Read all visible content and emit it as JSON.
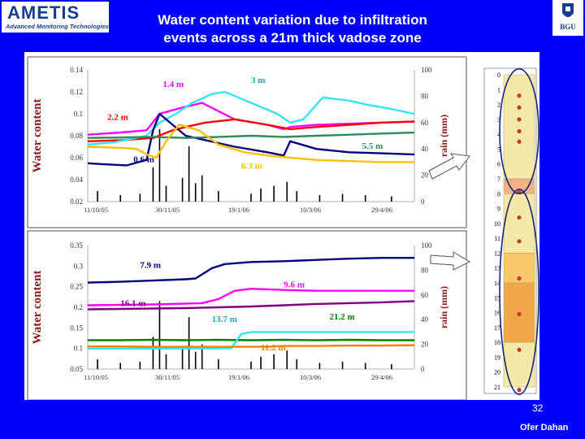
{
  "header": {
    "logo_name": "AMETIS",
    "logo_sub": "Advanced Monitoring Technologies",
    "title_line1": "Water content variation due to infiltration",
    "title_line2": "events across a 21m thick vadose zone",
    "right_logo": "BGU"
  },
  "footer": {
    "page_number": "32",
    "author": "Ofer Dahan"
  },
  "colors": {
    "background": "#0000ff",
    "navy": "#000080",
    "pink": "#ff00ff",
    "red": "#ff0000",
    "teal": "#2e8b57",
    "cyan": "#33e5f0",
    "gold": "#ffc000",
    "purple": "#800080",
    "orange": "#ff7f00",
    "green": "#008000"
  },
  "column": {
    "depths": [
      "0",
      "1",
      "2",
      "3",
      "4",
      "5",
      "6",
      "7",
      "8",
      "9",
      "10",
      "11",
      "12",
      "13",
      "14",
      "15",
      "16",
      "17",
      "18",
      "19",
      "20",
      "21"
    ]
  },
  "chart_data": [
    {
      "type": "line",
      "ylabel": "Water content",
      "y2label": "rain (mm)",
      "ylim": [
        0.02,
        0.14
      ],
      "y2lim": [
        0,
        100
      ],
      "yticks": [
        "0.14",
        "0.12",
        "0.1",
        "0.08",
        "0.06",
        "0.04",
        "0.02"
      ],
      "y2ticks": [
        "100",
        "80",
        "60",
        "40",
        "20",
        "0"
      ],
      "xticks": [
        "11/10/05",
        "30/11/05",
        "19/1/06",
        "10/3/06",
        "29/4/06"
      ],
      "series": [
        {
          "name": "1.4 m",
          "color": "#ff00ff",
          "x": [
            0,
            0.1,
            0.18,
            0.22,
            0.28,
            0.35,
            0.45,
            0.55,
            0.6,
            0.62,
            0.7,
            0.8,
            0.9,
            1
          ],
          "y": [
            0.081,
            0.083,
            0.085,
            0.1,
            0.105,
            0.11,
            0.095,
            0.09,
            0.086,
            0.088,
            0.09,
            0.091,
            0.092,
            0.093
          ]
        },
        {
          "name": "2.2 m",
          "color": "#ff0000",
          "x": [
            0,
            0.1,
            0.2,
            0.26,
            0.3,
            0.36,
            0.45,
            0.55,
            0.62,
            0.7,
            0.8,
            0.9,
            1
          ],
          "y": [
            0.075,
            0.076,
            0.078,
            0.085,
            0.088,
            0.092,
            0.095,
            0.09,
            0.086,
            0.088,
            0.09,
            0.092,
            0.093
          ]
        },
        {
          "name": "3 m",
          "color": "#33e5f0",
          "x": [
            0,
            0.08,
            0.18,
            0.22,
            0.27,
            0.32,
            0.38,
            0.42,
            0.5,
            0.58,
            0.62,
            0.66,
            0.72,
            0.8,
            0.86,
            0.92,
            1
          ],
          "y": [
            0.072,
            0.074,
            0.08,
            0.092,
            0.1,
            0.11,
            0.118,
            0.12,
            0.11,
            0.1,
            0.092,
            0.095,
            0.115,
            0.112,
            0.108,
            0.105,
            0.1
          ]
        },
        {
          "name": "0.6 m",
          "color": "#000080",
          "x": [
            0,
            0.05,
            0.12,
            0.18,
            0.2,
            0.22,
            0.3,
            0.45,
            0.55,
            0.6,
            0.62,
            0.7,
            0.8,
            0.9,
            1
          ],
          "y": [
            0.055,
            0.054,
            0.053,
            0.058,
            0.085,
            0.1,
            0.08,
            0.07,
            0.065,
            0.062,
            0.075,
            0.068,
            0.065,
            0.064,
            0.063
          ]
        },
        {
          "name": "5.5 m",
          "color": "#2e8b57",
          "x": [
            0,
            0.2,
            0.3,
            0.4,
            0.5,
            0.6,
            0.7,
            0.8,
            0.9,
            1
          ],
          "y": [
            0.078,
            0.079,
            0.078,
            0.079,
            0.08,
            0.079,
            0.08,
            0.081,
            0.082,
            0.083
          ]
        },
        {
          "name": "6.3 m",
          "color": "#ffc000",
          "x": [
            0,
            0.1,
            0.15,
            0.18,
            0.21,
            0.24,
            0.28,
            0.34,
            0.4,
            0.48,
            0.55,
            0.62,
            0.7,
            0.8,
            0.9,
            1
          ],
          "y": [
            0.07,
            0.069,
            0.068,
            0.063,
            0.06,
            0.075,
            0.09,
            0.085,
            0.072,
            0.065,
            0.062,
            0.06,
            0.058,
            0.057,
            0.056,
            0.056
          ]
        }
      ],
      "rain": [
        [
          0.03,
          8
        ],
        [
          0.1,
          5
        ],
        [
          0.16,
          6
        ],
        [
          0.2,
          26
        ],
        [
          0.22,
          55
        ],
        [
          0.24,
          12
        ],
        [
          0.29,
          18
        ],
        [
          0.31,
          42
        ],
        [
          0.33,
          14
        ],
        [
          0.35,
          20
        ],
        [
          0.4,
          8
        ],
        [
          0.5,
          6
        ],
        [
          0.53,
          10
        ],
        [
          0.57,
          12
        ],
        [
          0.61,
          15
        ],
        [
          0.64,
          8
        ],
        [
          0.71,
          5
        ],
        [
          0.78,
          6
        ],
        [
          0.85,
          5
        ],
        [
          0.93,
          4
        ]
      ]
    },
    {
      "type": "line",
      "ylabel": "Water content",
      "y2label": "rain (mm)",
      "ylim": [
        0.05,
        0.35
      ],
      "y2lim": [
        0,
        100
      ],
      "yticks": [
        "0.35",
        "0.3",
        "0.25",
        "0.2",
        "0.15",
        "0.1",
        "0.05"
      ],
      "y2ticks": [
        "100",
        "80",
        "60",
        "40",
        "20",
        "0"
      ],
      "xticks": [
        "11/10/05",
        "30/11/05",
        "19/1/06",
        "10/3/06",
        "29/4/06"
      ],
      "series": [
        {
          "name": "7.9 m",
          "color": "#000080",
          "x": [
            0,
            0.1,
            0.2,
            0.3,
            0.33,
            0.38,
            0.42,
            0.5,
            0.6,
            0.7,
            0.8,
            0.9,
            1
          ],
          "y": [
            0.26,
            0.262,
            0.265,
            0.268,
            0.27,
            0.295,
            0.305,
            0.31,
            0.312,
            0.315,
            0.318,
            0.32,
            0.32
          ]
        },
        {
          "name": "9.6 m",
          "color": "#ff00ff",
          "x": [
            0,
            0.1,
            0.2,
            0.35,
            0.4,
            0.45,
            0.5,
            0.6,
            0.7,
            0.8,
            0.9,
            1
          ],
          "y": [
            0.205,
            0.206,
            0.207,
            0.21,
            0.22,
            0.24,
            0.245,
            0.242,
            0.24,
            0.24,
            0.24,
            0.24
          ]
        },
        {
          "name": "16.1 m",
          "color": "#800080",
          "x": [
            0,
            0.1,
            0.2,
            0.3,
            0.4,
            0.5,
            0.6,
            0.7,
            0.8,
            0.9,
            1
          ],
          "y": [
            0.195,
            0.196,
            0.197,
            0.198,
            0.2,
            0.202,
            0.205,
            0.208,
            0.21,
            0.212,
            0.215
          ]
        },
        {
          "name": "21.2 m",
          "color": "#008000",
          "x": [
            0,
            0.1,
            0.2,
            0.3,
            0.4,
            0.5,
            0.6,
            0.7,
            0.8,
            0.9,
            1
          ],
          "y": [
            0.12,
            0.12,
            0.121,
            0.12,
            0.121,
            0.12,
            0.121,
            0.12,
            0.121,
            0.12,
            0.12
          ]
        },
        {
          "name": "13.7 m",
          "color": "#33e5f0",
          "x": [
            0,
            0.1,
            0.2,
            0.3,
            0.44,
            0.47,
            0.5,
            0.6,
            0.7,
            0.8,
            0.9,
            1
          ],
          "y": [
            0.1,
            0.1,
            0.1,
            0.1,
            0.101,
            0.135,
            0.14,
            0.14,
            0.14,
            0.14,
            0.14,
            0.14
          ]
        },
        {
          "name": "11.2 m",
          "color": "#ff7f00",
          "x": [
            0,
            0.1,
            0.2,
            0.3,
            0.4,
            0.5,
            0.55,
            0.6,
            0.7,
            0.8,
            0.9,
            1
          ],
          "y": [
            0.105,
            0.105,
            0.104,
            0.104,
            0.104,
            0.104,
            0.104,
            0.106,
            0.106,
            0.107,
            0.107,
            0.108
          ]
        }
      ],
      "rain": [
        [
          0.03,
          8
        ],
        [
          0.1,
          5
        ],
        [
          0.16,
          6
        ],
        [
          0.2,
          26
        ],
        [
          0.22,
          55
        ],
        [
          0.24,
          12
        ],
        [
          0.29,
          18
        ],
        [
          0.31,
          42
        ],
        [
          0.33,
          14
        ],
        [
          0.35,
          20
        ],
        [
          0.4,
          8
        ],
        [
          0.5,
          6
        ],
        [
          0.53,
          10
        ],
        [
          0.57,
          12
        ],
        [
          0.61,
          15
        ],
        [
          0.64,
          8
        ],
        [
          0.71,
          5
        ],
        [
          0.78,
          6
        ],
        [
          0.85,
          5
        ],
        [
          0.93,
          4
        ]
      ]
    }
  ]
}
